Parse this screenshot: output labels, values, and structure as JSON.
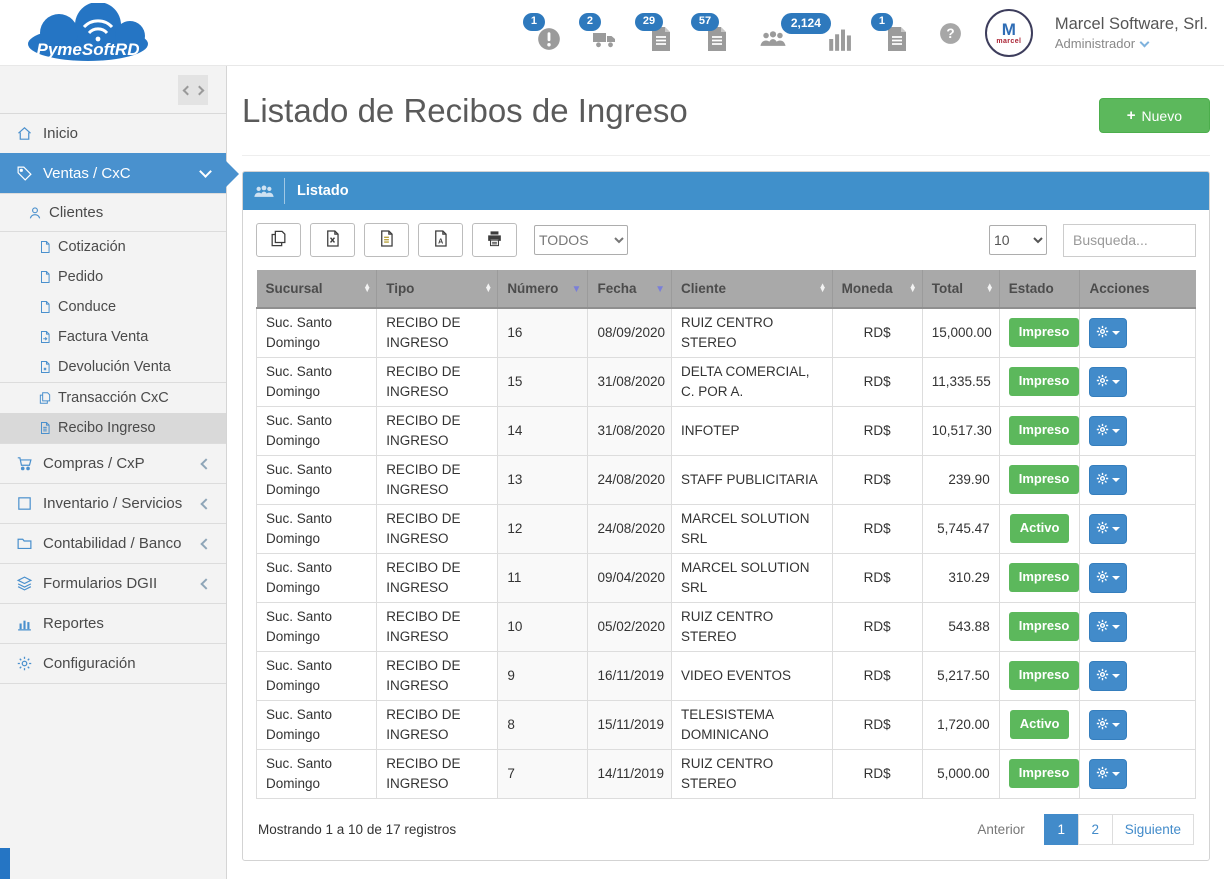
{
  "header": {
    "logo_text": "PymeSoftRD",
    "badges": [
      {
        "name": "alerts",
        "icon": "alert-icon",
        "count": "1"
      },
      {
        "name": "purchases",
        "icon": "truck-icon",
        "count": "2"
      },
      {
        "name": "documents",
        "icon": "doc-badge-icon",
        "count": "29"
      },
      {
        "name": "invoices",
        "icon": "doc-badge-icon",
        "count": "57"
      },
      {
        "name": "clients",
        "icon": "users-icon",
        "count": "2,124",
        "extra_icon": "bars-icon"
      },
      {
        "name": "receipts",
        "icon": "doc-badge-icon",
        "count": "1"
      }
    ],
    "user": {
      "company": "Marcel Software, Srl.",
      "role": "Administrador",
      "avatar_label": "M",
      "avatar_sub": "marcel"
    }
  },
  "sidebar": {
    "items": [
      {
        "label": "Inicio",
        "icon": "home-icon",
        "level": 1
      },
      {
        "label": "Ventas / CxC",
        "icon": "tag-icon",
        "level": 1,
        "active": true,
        "chevron": "down"
      },
      {
        "label": "Clientes",
        "icon": "user-icon",
        "level": 2
      },
      {
        "label": "Cotización",
        "icon": "file-icon",
        "level": 3,
        "sep": true
      },
      {
        "label": "Pedido",
        "icon": "file-icon",
        "level": 3
      },
      {
        "label": "Conduce",
        "icon": "file-icon",
        "level": 3
      },
      {
        "label": "Factura Venta",
        "icon": "file-arrow-icon",
        "level": 3
      },
      {
        "label": "Devolución Venta",
        "icon": "file-x-icon",
        "level": 3
      },
      {
        "label": "Transacción CxC",
        "icon": "copy-icon",
        "level": 3,
        "sep": true
      },
      {
        "label": "Recibo Ingreso",
        "icon": "file-lines-icon",
        "level": 3,
        "active": true
      },
      {
        "label": "Compras / CxP",
        "icon": "cart-icon",
        "level": 1,
        "chevron": "left"
      },
      {
        "label": "Inventario / Servicios",
        "icon": "square-icon",
        "level": 1,
        "chevron": "left"
      },
      {
        "label": "Contabilidad / Banco",
        "icon": "folder-icon",
        "level": 1,
        "chevron": "left"
      },
      {
        "label": "Formularios DGII",
        "icon": "layers-icon",
        "level": 1,
        "chevron": "left"
      },
      {
        "label": "Reportes",
        "icon": "chart-icon",
        "level": 1
      },
      {
        "label": "Configuración",
        "icon": "gear-icon",
        "level": 1
      }
    ]
  },
  "page": {
    "title": "Listado de Recibos de Ingreso",
    "new_label": "Nuevo",
    "plus_glyph": "+"
  },
  "panel": {
    "title": "Listado",
    "export_buttons": [
      {
        "name": "copy",
        "icon": "copy-pages-icon"
      },
      {
        "name": "excel",
        "icon": "excel-icon"
      },
      {
        "name": "csv",
        "icon": "doc-icon"
      },
      {
        "name": "pdf",
        "icon": "pdf-icon"
      },
      {
        "name": "print",
        "icon": "print-icon"
      }
    ],
    "filter_selected": "TODOS",
    "page_size_selected": "10",
    "search_placeholder": "Busqueda..."
  },
  "table": {
    "status_color": "#5cb85c",
    "columns": [
      {
        "key": "sucursal",
        "label": "Sucursal",
        "sort": "both"
      },
      {
        "key": "tipo",
        "label": "Tipo",
        "sort": "both"
      },
      {
        "key": "numero",
        "label": "Número",
        "sort": "desc"
      },
      {
        "key": "fecha",
        "label": "Fecha",
        "sort": "desc"
      },
      {
        "key": "cliente",
        "label": "Cliente",
        "sort": "both"
      },
      {
        "key": "moneda",
        "label": "Moneda",
        "sort": "both"
      },
      {
        "key": "total",
        "label": "Total",
        "sort": "both"
      },
      {
        "key": "estado",
        "label": "Estado",
        "sort": "none"
      },
      {
        "key": "acciones",
        "label": "Acciones",
        "sort": "none"
      }
    ],
    "rows": [
      {
        "sucursal": "Suc. Santo Domingo",
        "tipo": "RECIBO DE INGRESO",
        "numero": "16",
        "fecha": "08/09/2020",
        "cliente": "RUIZ CENTRO STEREO",
        "moneda": "RD$",
        "total": "15,000.00",
        "estado": "Impreso"
      },
      {
        "sucursal": "Suc. Santo Domingo",
        "tipo": "RECIBO DE INGRESO",
        "numero": "15",
        "fecha": "31/08/2020",
        "cliente": "DELTA COMERCIAL, C. POR A.",
        "moneda": "RD$",
        "total": "11,335.55",
        "estado": "Impreso"
      },
      {
        "sucursal": "Suc. Santo Domingo",
        "tipo": "RECIBO DE INGRESO",
        "numero": "14",
        "fecha": "31/08/2020",
        "cliente": "INFOTEP",
        "moneda": "RD$",
        "total": "10,517.30",
        "estado": "Impreso"
      },
      {
        "sucursal": "Suc. Santo Domingo",
        "tipo": "RECIBO DE INGRESO",
        "numero": "13",
        "fecha": "24/08/2020",
        "cliente": "STAFF PUBLICITARIA",
        "moneda": "RD$",
        "total": "239.90",
        "estado": "Impreso"
      },
      {
        "sucursal": "Suc. Santo Domingo",
        "tipo": "RECIBO DE INGRESO",
        "numero": "12",
        "fecha": "24/08/2020",
        "cliente": "MARCEL SOLUTION SRL",
        "moneda": "RD$",
        "total": "5,745.47",
        "estado": "Activo"
      },
      {
        "sucursal": "Suc. Santo Domingo",
        "tipo": "RECIBO DE INGRESO",
        "numero": "11",
        "fecha": "09/04/2020",
        "cliente": "MARCEL SOLUTION SRL",
        "moneda": "RD$",
        "total": "310.29",
        "estado": "Impreso"
      },
      {
        "sucursal": "Suc. Santo Domingo",
        "tipo": "RECIBO DE INGRESO",
        "numero": "10",
        "fecha": "05/02/2020",
        "cliente": "RUIZ CENTRO STEREO",
        "moneda": "RD$",
        "total": "543.88",
        "estado": "Impreso"
      },
      {
        "sucursal": "Suc. Santo Domingo",
        "tipo": "RECIBO DE INGRESO",
        "numero": "9",
        "fecha": "16/11/2019",
        "cliente": "VIDEO EVENTOS",
        "moneda": "RD$",
        "total": "5,217.50",
        "estado": "Impreso"
      },
      {
        "sucursal": "Suc. Santo Domingo",
        "tipo": "RECIBO DE INGRESO",
        "numero": "8",
        "fecha": "15/11/2019",
        "cliente": "TELESISTEMA DOMINICANO",
        "moneda": "RD$",
        "total": "1,720.00",
        "estado": "Activo"
      },
      {
        "sucursal": "Suc. Santo Domingo",
        "tipo": "RECIBO DE INGRESO",
        "numero": "7",
        "fecha": "14/11/2019",
        "cliente": "RUIZ CENTRO STEREO",
        "moneda": "RD$",
        "total": "5,000.00",
        "estado": "Impreso"
      }
    ]
  },
  "footer": {
    "showing": "Mostrando 1 a 10 de 17 registros",
    "prev_label": "Anterior",
    "pages": [
      "1",
      "2"
    ],
    "active_page": "1",
    "next_label": "Siguiente"
  }
}
